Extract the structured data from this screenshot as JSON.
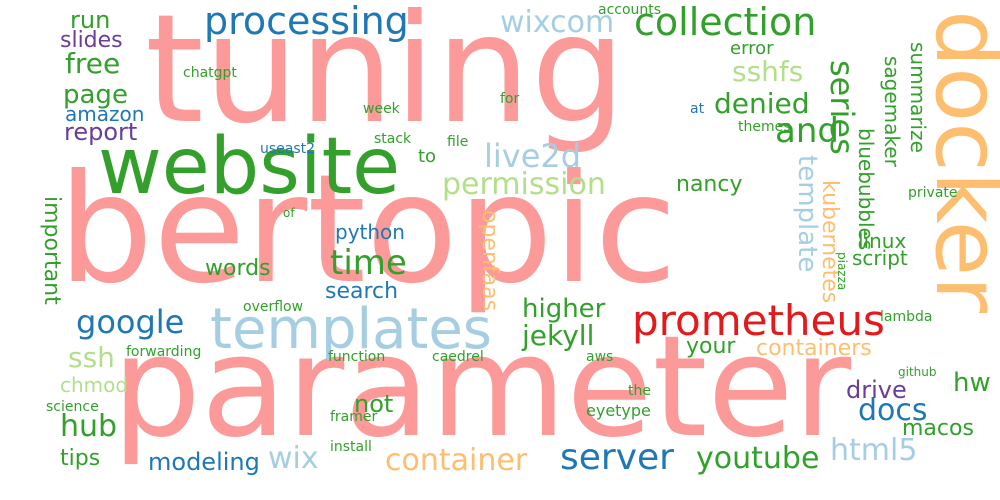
{
  "palette": {
    "salmon": "#fb9a99",
    "green": "#33a02c",
    "blue": "#1f78b4",
    "lightblue": "#a6cee3",
    "lightgreen": "#b2df8a",
    "orange": "#fdbf6f",
    "red": "#e31a1c",
    "purple": "#6a3d9a"
  },
  "words": {
    "bertopic": "bertopic",
    "parameter": "parameter",
    "tuning": "tuning",
    "docker": "docker",
    "website": "website",
    "templates": "templates",
    "prometheus": "prometheus",
    "processing": "processing",
    "collection": "collection",
    "wixcom": "wixcom",
    "sshfs": "sshfs",
    "free": "free",
    "run": "run",
    "slides": "slides",
    "page": "page",
    "amazon": "amazon",
    "report": "report",
    "chatgpt": "chatgpt",
    "accounts": "accounts",
    "error": "error",
    "and": "and",
    "denied": "denied",
    "series": "series",
    "summarize": "summarize",
    "sagemaker": "sagemaker",
    "bluebubbles": "bluebubbles",
    "live2d": "live2d",
    "permission": "permission",
    "nancy": "nancy",
    "template": "template",
    "kubernetes": "kubernetes",
    "linux": "linux",
    "script": "script",
    "python": "python",
    "time": "time",
    "words": "words",
    "search": "search",
    "openfaas": "openfaas",
    "important": "important",
    "google": "google",
    "higher": "higher",
    "jekyll": "jekyll",
    "your": "your",
    "containers": "containers",
    "ssh": "ssh",
    "chmod": "chmod",
    "forwarding": "forwarding",
    "function": "function",
    "caedrel": "caedrel",
    "aws": "aws",
    "not": "not",
    "hub": "hub",
    "tips": "tips",
    "modeling": "modeling",
    "wix": "wix",
    "container": "container",
    "server": "server",
    "youtube": "youtube",
    "html5": "html5",
    "docs": "docs",
    "drive": "drive",
    "hw": "hw",
    "macos": "macos",
    "github": "github",
    "lambda": "lambda",
    "piazza": "piazza",
    "private": "private",
    "themes": "themes",
    "eyetype": "eyetype",
    "the": "the",
    "science": "science",
    "framer": "framer",
    "install": "install",
    "overflow": "overflow",
    "useast2": "useast2",
    "stack": "stack",
    "file": "file",
    "week": "week",
    "for": "for",
    "at": "at",
    "to": "to",
    "of": "of"
  }
}
